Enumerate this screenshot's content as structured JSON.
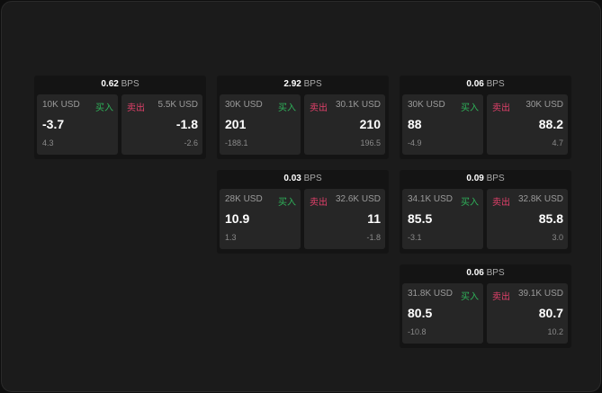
{
  "unit": "BPS",
  "buy_label": "买入",
  "sell_label": "卖出",
  "colors": {
    "buy": "#2fb35a",
    "sell": "#e0406a"
  },
  "cards": [
    {
      "bps": "0.62",
      "buy": {
        "size": "10K USD",
        "price": "-3.7",
        "change": "4.3"
      },
      "sell": {
        "size": "5.5K USD",
        "price": "-1.8",
        "change": "-2.6"
      }
    },
    {
      "bps": "2.92",
      "buy": {
        "size": "30K USD",
        "price": "201",
        "change": "-188.1"
      },
      "sell": {
        "size": "30.1K USD",
        "price": "210",
        "change": "196.5"
      }
    },
    {
      "bps": "0.06",
      "buy": {
        "size": "30K USD",
        "price": "88",
        "change": "-4.9"
      },
      "sell": {
        "size": "30K USD",
        "price": "88.2",
        "change": "4.7"
      }
    },
    {
      "bps": "0.03",
      "buy": {
        "size": "28K USD",
        "price": "10.9",
        "change": "1.3"
      },
      "sell": {
        "size": "32.6K USD",
        "price": "11",
        "change": "-1.8"
      }
    },
    {
      "bps": "0.09",
      "buy": {
        "size": "34.1K USD",
        "price": "85.5",
        "change": "-3.1"
      },
      "sell": {
        "size": "32.8K USD",
        "price": "85.8",
        "change": "3.0"
      }
    },
    {
      "bps": "0.06",
      "buy": {
        "size": "31.8K USD",
        "price": "80.5",
        "change": "-10.8"
      },
      "sell": {
        "size": "39.1K USD",
        "price": "80.7",
        "change": "10.2"
      }
    }
  ]
}
